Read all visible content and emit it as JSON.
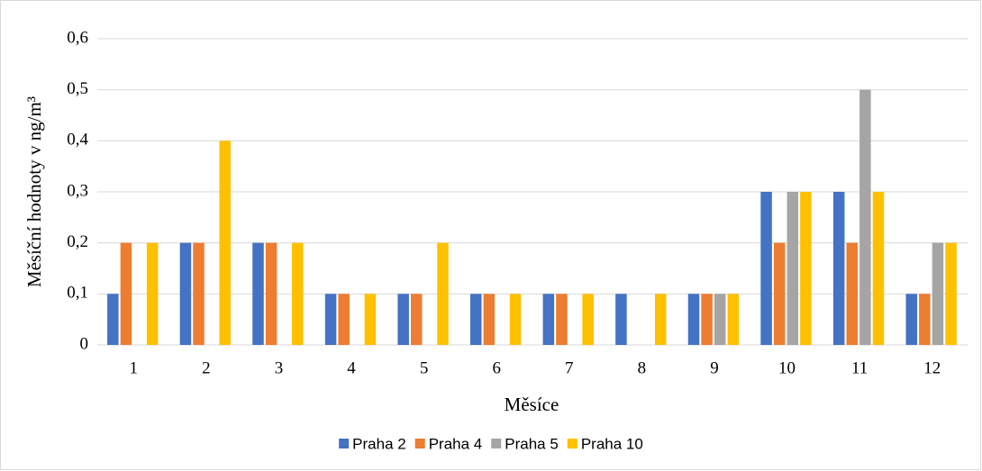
{
  "chart_data": {
    "type": "bar",
    "y_label": "Měsíční hodnoty v ng/m³",
    "x_label": "Měsíce",
    "categories": [
      "1",
      "2",
      "3",
      "4",
      "5",
      "6",
      "7",
      "8",
      "9",
      "10",
      "11",
      "12"
    ],
    "series": [
      {
        "name": "Praha 2",
        "color": "#4472c4",
        "values": [
          0.1,
          0.2,
          0.2,
          0.1,
          0.1,
          0.1,
          0.1,
          0.1,
          0.1,
          0.3,
          0.3,
          0.1
        ]
      },
      {
        "name": "Praha 4",
        "color": "#ed7d31",
        "values": [
          0.2,
          0.2,
          0.2,
          0.1,
          0.1,
          0.1,
          0.1,
          null,
          0.1,
          0.2,
          0.2,
          0.1
        ]
      },
      {
        "name": "Praha 5",
        "color": "#a5a5a5",
        "values": [
          null,
          null,
          null,
          null,
          null,
          null,
          null,
          null,
          0.1,
          0.3,
          0.5,
          0.2
        ]
      },
      {
        "name": "Praha 10",
        "color": "#ffc000",
        "values": [
          0.2,
          0.4,
          0.2,
          0.1,
          0.2,
          0.1,
          0.1,
          0.1,
          0.1,
          0.3,
          0.3,
          0.2
        ]
      }
    ],
    "ylim": [
      0,
      0.6
    ],
    "yticks": [
      0,
      {
        "value": 0.1,
        "label": "0,1"
      },
      {
        "value": 0.2,
        "label": "0,2"
      },
      {
        "value": 0.3,
        "label": "0,3"
      },
      {
        "value": 0.4,
        "label": "0,4"
      },
      {
        "value": 0.5,
        "label": "0,5"
      },
      {
        "value": 0.6,
        "label": "0,6"
      }
    ],
    "grid": true,
    "legend": "bottom"
  }
}
